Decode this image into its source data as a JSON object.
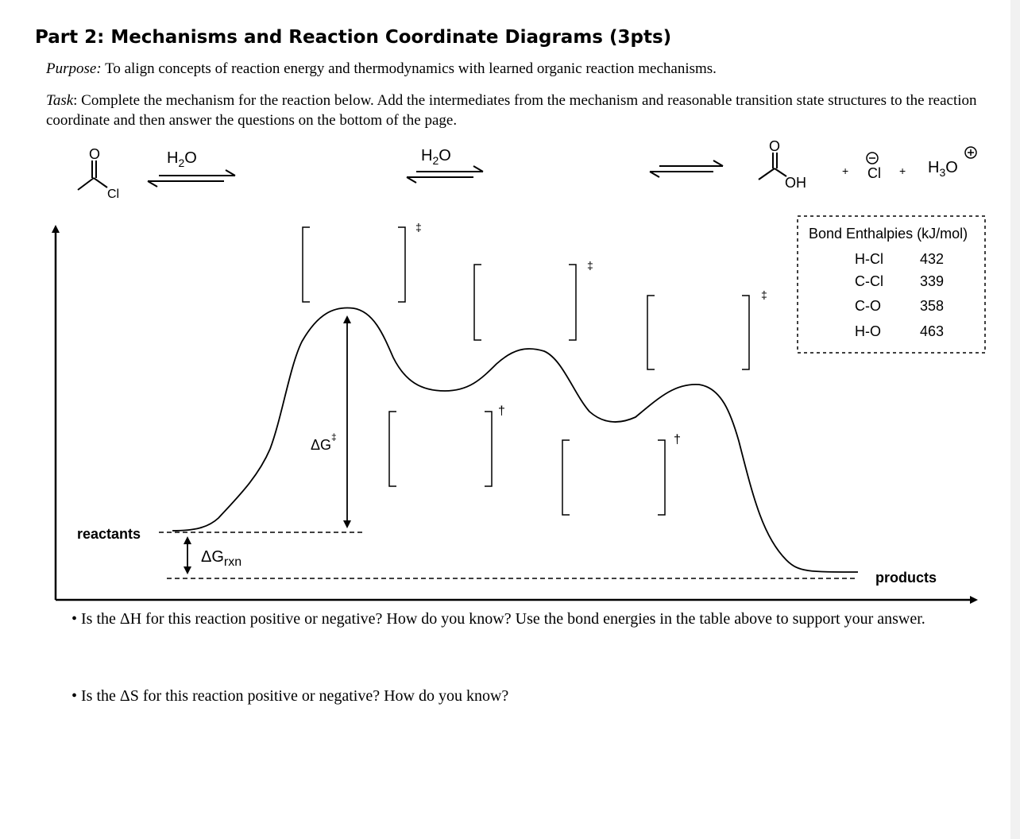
{
  "title": "Part 2: Mechanisms and Reaction Coordinate Diagrams (3pts)",
  "purpose": {
    "label": "Purpose:",
    "text": "To align concepts of reaction energy and thermodynamics with learned organic reaction mechanisms."
  },
  "task": {
    "label": "Task",
    "text": ": Complete the mechanism for the reaction below. Add the intermediates from the mechanism and reasonable transition state structures to the reaction coordinate and then answer the questions on the bottom of the page."
  },
  "reaction": {
    "reactant_atom_O": "O",
    "reactant_atom_Cl": "Cl",
    "reagent_1": "H2O",
    "reagent_2": "H2O",
    "product_atom_O": "O",
    "product_atom_OH": "OH",
    "plus_1": "+",
    "chloride": "Cl",
    "plus_2": "+",
    "hydronium": "H3O"
  },
  "bond_table": {
    "title": "Bond Enthalpies (kJ/mol)",
    "rows": [
      {
        "bond": "H-Cl",
        "value": "432"
      },
      {
        "bond": "C-Cl",
        "value": "339"
      },
      {
        "bond": "C-O",
        "value": "358"
      },
      {
        "bond": "H-O",
        "value": "463"
      }
    ]
  },
  "diagram": {
    "reactants_label": "reactants",
    "products_label": "products",
    "activation_label": "ΔG",
    "rxn_label": "ΔG",
    "rxn_subscript": "rxn",
    "ts_symbol": "‡",
    "int_symbol": "†"
  },
  "questions": [
    "• Is the ΔH for this reaction positive or negative? How do you know? Use the bond energies in the table above to support your answer.",
    "• Is the ΔS for this reaction positive or negative? How do you know?"
  ]
}
